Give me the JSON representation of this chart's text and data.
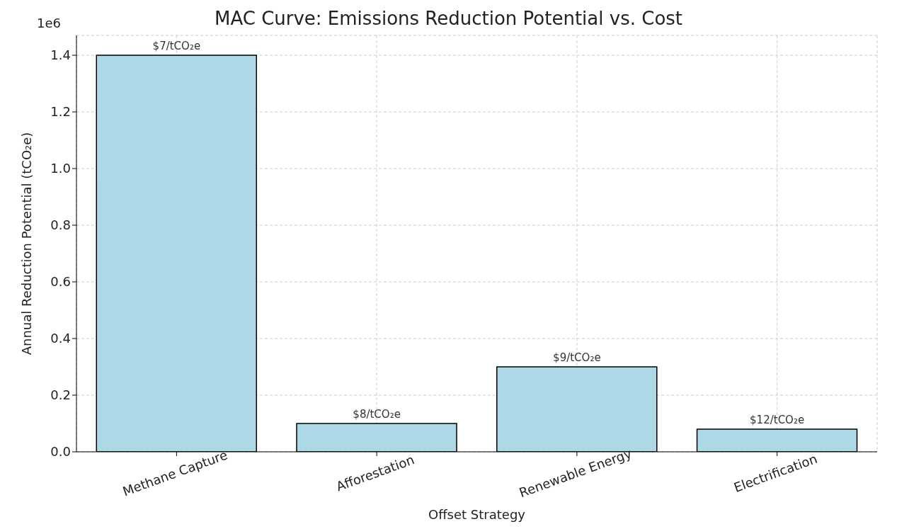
{
  "chart_data": {
    "type": "bar",
    "title": "MAC Curve: Emissions Reduction Potential vs. Cost",
    "xlabel": "Offset Strategy",
    "ylabel": "Annual Reduction Potential (tCO₂e)",
    "categories": [
      "Methane Capture",
      "Afforestation",
      "Renewable Energy",
      "Electrification"
    ],
    "values": [
      1.4,
      0.1,
      0.3,
      0.08
    ],
    "color": "#add8e6",
    "ylim": [
      0,
      1.47
    ],
    "yticks": [
      {
        "value": 0,
        "label": "0.0"
      },
      0.2,
      0.4,
      0.6,
      0.8,
      {
        "value": 1,
        "label": "1.0"
      },
      1.2,
      1.4
    ],
    "annotations": [
      "1e6",
      {
        "text": "$7/tCO₂e",
        "x": "Methane Capture",
        "y": 1.4
      },
      {
        "text": "$8/tCO₂e",
        "x": "Afforestation",
        "y": 0.1
      },
      {
        "text": "$9/tCO₂e",
        "x": "Renewable Energy",
        "y": 0.3
      },
      {
        "text": "$12/tCO₂e",
        "x": "Electrification",
        "y": 0.08
      }
    ],
    "grid": true
  }
}
